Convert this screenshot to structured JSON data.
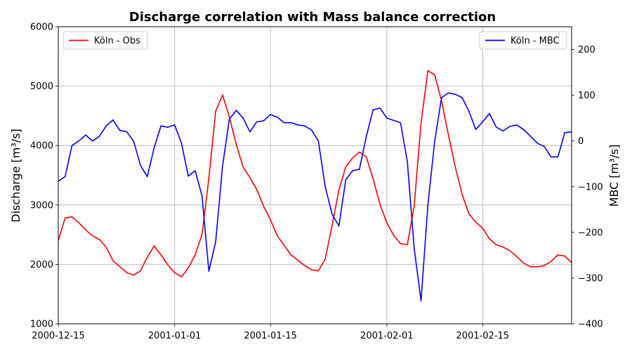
{
  "chart_data": {
    "type": "line",
    "title": "Discharge correlation with Mass balance correction",
    "xlabel": "",
    "ylabel_left": "Discharge [m³/s]",
    "ylabel_right": "MBC [m³/s]",
    "x_start": "2000-12-15",
    "x_end": "2001-02-28",
    "x_ticks": [
      "2000-12-15",
      "2001-01-01",
      "2001-01-15",
      "2001-02-01",
      "2001-02-15"
    ],
    "ylim_left": [
      1000,
      6000
    ],
    "yticks_left": [
      1000,
      2000,
      3000,
      4000,
      5000,
      6000
    ],
    "ylim_right": [
      -400,
      250
    ],
    "yticks_right": [
      -400,
      -300,
      -200,
      -100,
      0,
      100,
      200
    ],
    "grid": true,
    "series": [
      {
        "name": "Köln - Obs",
        "axis": "left",
        "color": "#ff0000",
        "legend_position": "upper-left",
        "x": [
          "2000-12-15",
          "2000-12-16",
          "2000-12-17",
          "2000-12-18",
          "2000-12-19",
          "2000-12-20",
          "2000-12-21",
          "2000-12-22",
          "2000-12-23",
          "2000-12-24",
          "2000-12-25",
          "2000-12-26",
          "2000-12-27",
          "2000-12-28",
          "2000-12-29",
          "2000-12-30",
          "2000-12-31",
          "2001-01-01",
          "2001-01-02",
          "2001-01-03",
          "2001-01-04",
          "2001-01-05",
          "2001-01-06",
          "2001-01-07",
          "2001-01-08",
          "2001-01-09",
          "2001-01-10",
          "2001-01-11",
          "2001-01-12",
          "2001-01-13",
          "2001-01-14",
          "2001-01-15",
          "2001-01-16",
          "2001-01-17",
          "2001-01-18",
          "2001-01-19",
          "2001-01-20",
          "2001-01-21",
          "2001-01-22",
          "2001-01-23",
          "2001-01-24",
          "2001-01-25",
          "2001-01-26",
          "2001-01-27",
          "2001-01-28",
          "2001-01-29",
          "2001-01-30",
          "2001-01-31",
          "2001-02-01",
          "2001-02-02",
          "2001-02-03",
          "2001-02-04",
          "2001-02-05",
          "2001-02-06",
          "2001-02-07",
          "2001-02-08",
          "2001-02-09",
          "2001-02-10",
          "2001-02-11",
          "2001-02-12",
          "2001-02-13",
          "2001-02-14",
          "2001-02-15",
          "2001-02-16",
          "2001-02-17",
          "2001-02-18",
          "2001-02-19",
          "2001-02-20",
          "2001-02-21",
          "2001-02-22",
          "2001-02-23",
          "2001-02-24",
          "2001-02-25",
          "2001-02-26",
          "2001-02-27",
          "2001-02-28"
        ],
        "y": [
          2400,
          2780,
          2800,
          2700,
          2580,
          2480,
          2420,
          2290,
          2060,
          1960,
          1860,
          1820,
          1890,
          2120,
          2310,
          2160,
          1990,
          1860,
          1790,
          1940,
          2160,
          2500,
          3450,
          4580,
          4850,
          4480,
          4020,
          3640,
          3460,
          3260,
          2980,
          2750,
          2480,
          2320,
          2160,
          2070,
          1980,
          1910,
          1890,
          2090,
          2650,
          3250,
          3640,
          3790,
          3890,
          3810,
          3440,
          3010,
          2700,
          2490,
          2350,
          2330,
          2980,
          4380,
          5260,
          5190,
          4750,
          4180,
          3640,
          3180,
          2850,
          2710,
          2610,
          2430,
          2330,
          2290,
          2230,
          2130,
          2020,
          1960,
          1960,
          1980,
          2050,
          2160,
          2140,
          2030
        ]
      },
      {
        "name": "Köln - MBC",
        "axis": "right",
        "color": "#0000ff",
        "legend_position": "upper-right",
        "x": [
          "2000-12-15",
          "2000-12-16",
          "2000-12-17",
          "2000-12-18",
          "2000-12-19",
          "2000-12-20",
          "2000-12-21",
          "2000-12-22",
          "2000-12-23",
          "2000-12-24",
          "2000-12-25",
          "2000-12-26",
          "2000-12-27",
          "2000-12-28",
          "2000-12-29",
          "2000-12-30",
          "2000-12-31",
          "2001-01-01",
          "2001-01-02",
          "2001-01-03",
          "2001-01-04",
          "2001-01-05",
          "2001-01-06",
          "2001-01-07",
          "2001-01-08",
          "2001-01-09",
          "2001-01-10",
          "2001-01-11",
          "2001-01-12",
          "2001-01-13",
          "2001-01-14",
          "2001-01-15",
          "2001-01-16",
          "2001-01-17",
          "2001-01-18",
          "2001-01-19",
          "2001-01-20",
          "2001-01-21",
          "2001-01-22",
          "2001-01-23",
          "2001-01-24",
          "2001-01-25",
          "2001-01-26",
          "2001-01-27",
          "2001-01-28",
          "2001-01-29",
          "2001-01-30",
          "2001-01-31",
          "2001-02-01",
          "2001-02-02",
          "2001-02-03",
          "2001-02-04",
          "2001-02-05",
          "2001-02-06",
          "2001-02-07",
          "2001-02-08",
          "2001-02-09",
          "2001-02-10",
          "2001-02-11",
          "2001-02-12",
          "2001-02-13",
          "2001-02-14",
          "2001-02-15",
          "2001-02-16",
          "2001-02-17",
          "2001-02-18",
          "2001-02-19",
          "2001-02-20",
          "2001-02-21",
          "2001-02-22",
          "2001-02-23",
          "2001-02-24",
          "2001-02-25",
          "2001-02-26",
          "2001-02-27",
          "2001-02-28"
        ],
        "y": [
          -88,
          -78,
          -10,
          0,
          13,
          0,
          10,
          33,
          46,
          23,
          20,
          0,
          -53,
          -78,
          -15,
          33,
          30,
          35,
          -5,
          -77,
          -65,
          -120,
          -285,
          -220,
          -55,
          48,
          67,
          50,
          20,
          42,
          44,
          58,
          52,
          40,
          40,
          35,
          33,
          24,
          0,
          -100,
          -160,
          -186,
          -85,
          -65,
          -62,
          10,
          68,
          72,
          50,
          45,
          40,
          -45,
          -235,
          -350,
          -140,
          0,
          95,
          105,
          102,
          95,
          65,
          25,
          42,
          60,
          30,
          22,
          32,
          35,
          25,
          10,
          -5,
          -12,
          -35,
          -35,
          18,
          20
        ]
      }
    ]
  }
}
